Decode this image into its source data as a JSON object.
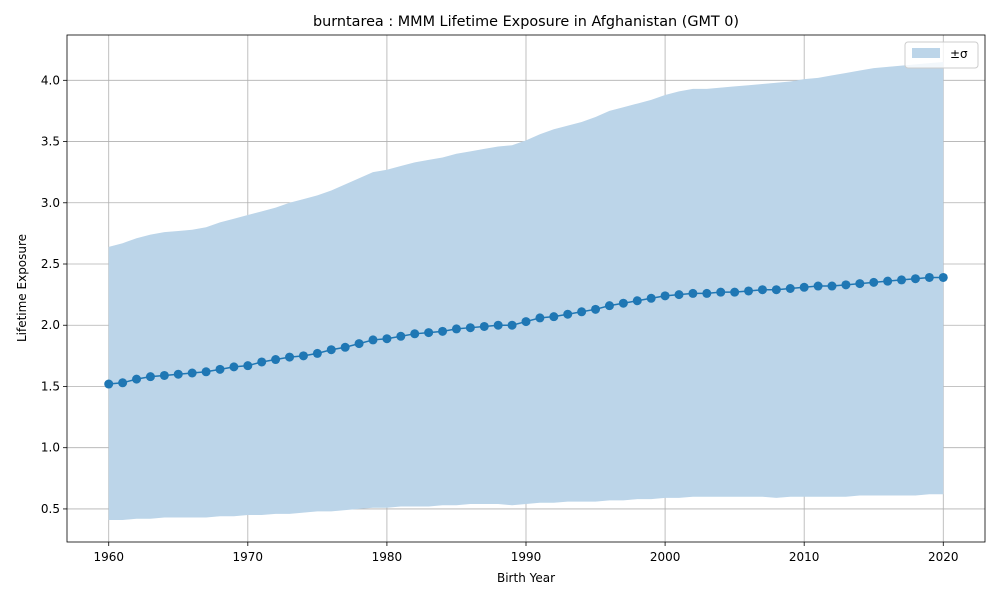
{
  "chart_data": {
    "type": "line",
    "title": "burntarea : MMM Lifetime Exposure in Afghanistan (GMT 0)",
    "xlabel": "Birth Year",
    "ylabel": "Lifetime Exposure",
    "xlim": [
      1957,
      2023
    ],
    "ylim": [
      0.23,
      4.37
    ],
    "x_ticks": [
      1960,
      1970,
      1980,
      1990,
      2000,
      2010,
      2020
    ],
    "y_ticks": [
      0.5,
      1.0,
      1.5,
      2.0,
      2.5,
      3.0,
      3.5,
      4.0
    ],
    "x_tick_labels": [
      "1960",
      "1970",
      "1980",
      "1990",
      "2000",
      "2010",
      "2020"
    ],
    "y_tick_labels": [
      "0.5",
      "1.0",
      "1.5",
      "2.0",
      "2.5",
      "3.0",
      "3.5",
      "4.0"
    ],
    "grid": true,
    "legend": {
      "position": "top-right",
      "entries": [
        "±σ"
      ]
    },
    "colors": {
      "line": "#1f77b4",
      "band": "#bcd5e9",
      "grid": "#b0b0b0"
    },
    "x": [
      1960,
      1961,
      1962,
      1963,
      1964,
      1965,
      1966,
      1967,
      1968,
      1969,
      1970,
      1971,
      1972,
      1973,
      1974,
      1975,
      1976,
      1977,
      1978,
      1979,
      1980,
      1981,
      1982,
      1983,
      1984,
      1985,
      1986,
      1987,
      1988,
      1989,
      1990,
      1991,
      1992,
      1993,
      1994,
      1995,
      1996,
      1997,
      1998,
      1999,
      2000,
      2001,
      2002,
      2003,
      2004,
      2005,
      2006,
      2007,
      2008,
      2009,
      2010,
      2011,
      2012,
      2013,
      2014,
      2015,
      2016,
      2017,
      2018,
      2019,
      2020
    ],
    "series": [
      {
        "values": [
          1.52,
          1.53,
          1.56,
          1.58,
          1.59,
          1.6,
          1.61,
          1.62,
          1.64,
          1.66,
          1.67,
          1.7,
          1.72,
          1.74,
          1.75,
          1.77,
          1.8,
          1.82,
          1.85,
          1.88,
          1.89,
          1.91,
          1.93,
          1.94,
          1.95,
          1.97,
          1.98,
          1.99,
          2.0,
          2.0,
          2.03,
          2.06,
          2.07,
          2.09,
          2.11,
          2.13,
          2.16,
          2.18,
          2.2,
          2.22,
          2.24,
          2.25,
          2.26,
          2.26,
          2.27,
          2.27,
          2.28,
          2.29,
          2.29,
          2.3,
          2.31,
          2.32,
          2.32,
          2.33,
          2.34,
          2.35,
          2.36,
          2.37,
          2.38,
          2.39,
          2.39
        ]
      }
    ],
    "band_upper": [
      2.64,
      2.67,
      2.71,
      2.74,
      2.76,
      2.77,
      2.78,
      2.8,
      2.84,
      2.87,
      2.9,
      2.93,
      2.96,
      3.0,
      3.03,
      3.06,
      3.1,
      3.15,
      3.2,
      3.25,
      3.27,
      3.3,
      3.33,
      3.35,
      3.37,
      3.4,
      3.42,
      3.44,
      3.46,
      3.47,
      3.51,
      3.56,
      3.6,
      3.63,
      3.66,
      3.7,
      3.75,
      3.78,
      3.81,
      3.84,
      3.88,
      3.91,
      3.93,
      3.93,
      3.94,
      3.95,
      3.96,
      3.97,
      3.98,
      3.99,
      4.01,
      4.02,
      4.04,
      4.06,
      4.08,
      4.1,
      4.11,
      4.12,
      4.13,
      4.14,
      4.15
    ],
    "band_lower": [
      0.41,
      0.41,
      0.42,
      0.42,
      0.43,
      0.43,
      0.43,
      0.43,
      0.44,
      0.44,
      0.45,
      0.45,
      0.46,
      0.46,
      0.47,
      0.48,
      0.48,
      0.49,
      0.5,
      0.51,
      0.51,
      0.52,
      0.52,
      0.52,
      0.53,
      0.53,
      0.54,
      0.54,
      0.54,
      0.53,
      0.54,
      0.55,
      0.55,
      0.56,
      0.56,
      0.56,
      0.57,
      0.57,
      0.58,
      0.58,
      0.59,
      0.59,
      0.6,
      0.6,
      0.6,
      0.6,
      0.6,
      0.6,
      0.59,
      0.6,
      0.6,
      0.6,
      0.6,
      0.6,
      0.61,
      0.61,
      0.61,
      0.61,
      0.61,
      0.62,
      0.62
    ]
  }
}
